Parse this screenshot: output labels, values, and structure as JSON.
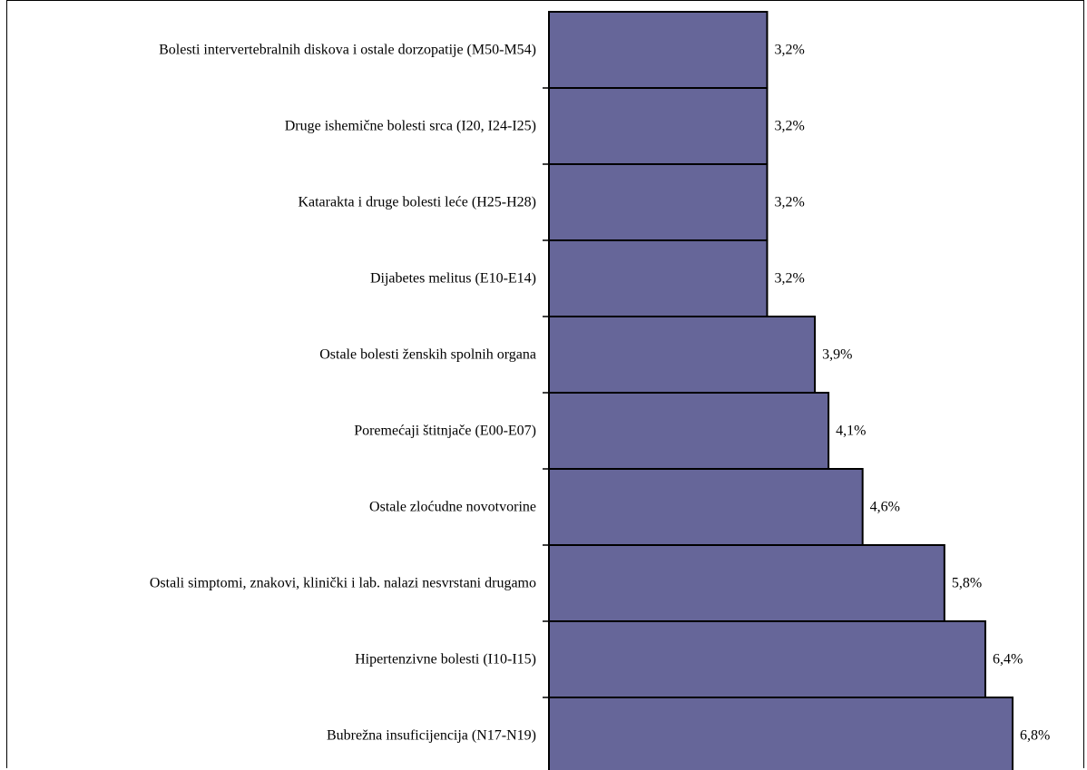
{
  "chart_data": {
    "type": "bar",
    "orientation": "horizontal",
    "categories": [
      "Bolesti intervertebralnih diskova i ostale dorzopatije (M50-M54)",
      "Druge ishemične bolesti srca (I20, I24-I25)",
      "Katarakta i druge bolesti leće (H25-H28)",
      "Dijabetes melitus (E10-E14)",
      "Ostale bolesti ženskih spolnih organa",
      "Poremećaji štitnjače (E00-E07)",
      "Ostale zloćudne novotvorine",
      "Ostali simptomi, znakovi, klinički i lab. nalazi nesvrstani drugamo",
      "Hipertenzivne bolesti (I10-I15)",
      "Bubrežna insuficijencija (N17-N19)"
    ],
    "values": [
      3.2,
      3.2,
      3.2,
      3.2,
      3.9,
      4.1,
      4.6,
      5.8,
      6.4,
      6.8
    ],
    "labels": [
      "3,2%",
      "3,2%",
      "3,2%",
      "3,2%",
      "3,9%",
      "4,1%",
      "4,6%",
      "5,8%",
      "6,4%",
      "6,8%"
    ],
    "bar_color": "#666699",
    "title": "",
    "xlabel": "",
    "ylabel": "",
    "xlim": [
      0,
      6.8
    ],
    "grid": false,
    "legend": "none"
  }
}
